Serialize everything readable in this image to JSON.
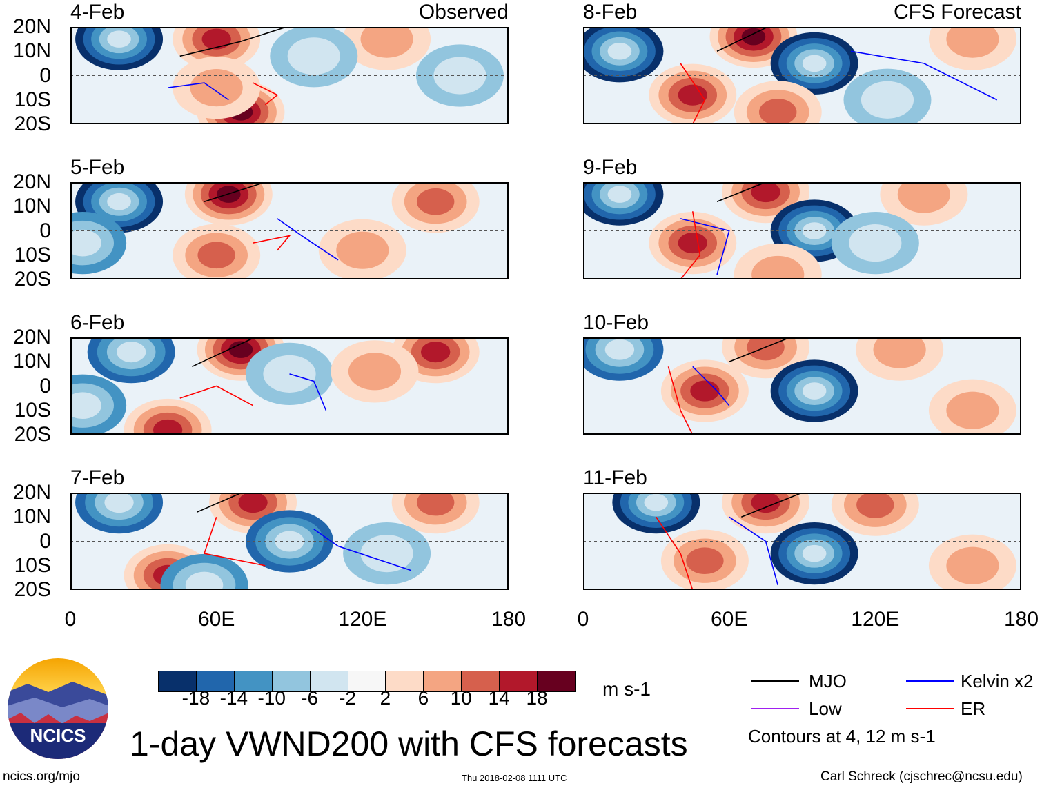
{
  "chart_data": {
    "type": "heatmap",
    "title": "1-day VWND200 with CFS forecasts",
    "units": "m s-1",
    "xlim": [
      0,
      180
    ],
    "ylim": [
      -20,
      20
    ],
    "xticks": [
      "0",
      "60E",
      "120E",
      "180"
    ],
    "yticks": [
      "20N",
      "10N",
      "0",
      "10S",
      "20S"
    ],
    "column_labels": {
      "left": "Observed",
      "right": "CFS Forecast"
    },
    "colorbar": {
      "levels": [
        "-18",
        "-14",
        "-10",
        "-6",
        "-2",
        "2",
        "6",
        "10",
        "14",
        "18"
      ],
      "colors": [
        "#08306b",
        "#2166ac",
        "#4393c3",
        "#92c5de",
        "#d1e5f0",
        "#f7f7f7",
        "#fddbc7",
        "#f4a582",
        "#d6604d",
        "#b2182b",
        "#67001f"
      ]
    },
    "legend": {
      "items": [
        {
          "label": "MJO",
          "color": "#000000"
        },
        {
          "label": "Kelvin x2",
          "color": "#0000ff"
        },
        {
          "label": "Low",
          "color": "#a020f0"
        },
        {
          "label": "ER",
          "color": "#ff0000"
        }
      ],
      "note": "Contours at 4, 12 m s-1"
    },
    "panels": [
      {
        "date": "4-Feb",
        "col": 0,
        "row": 0,
        "label": "Observed",
        "anomalies": [
          [
            20,
            15,
            -18
          ],
          [
            60,
            15,
            14
          ],
          [
            70,
            -15,
            18
          ],
          [
            60,
            -5,
            6
          ],
          [
            160,
            0,
            -6
          ],
          [
            130,
            15,
            6
          ],
          [
            100,
            8,
            -6
          ]
        ],
        "mjo": [
          [
            45,
            8
          ],
          [
            70,
            14
          ],
          [
            95,
            22
          ]
        ],
        "kelvin": [
          [
            40,
            -5
          ],
          [
            55,
            -3
          ],
          [
            65,
            -10
          ]
        ],
        "er": [
          [
            75,
            -3
          ],
          [
            85,
            -8
          ],
          [
            80,
            -12
          ]
        ]
      },
      {
        "date": "5-Feb",
        "col": 0,
        "row": 1,
        "label": "",
        "anomalies": [
          [
            20,
            12,
            -18
          ],
          [
            65,
            15,
            18
          ],
          [
            60,
            -10,
            10
          ],
          [
            150,
            12,
            10
          ],
          [
            5,
            -5,
            -10
          ],
          [
            120,
            -8,
            6
          ]
        ],
        "mjo": [
          [
            55,
            12
          ],
          [
            80,
            20
          ]
        ],
        "kelvin": [
          [
            85,
            5
          ],
          [
            95,
            -2
          ],
          [
            110,
            -12
          ]
        ],
        "er": [
          [
            75,
            -5
          ],
          [
            90,
            -2
          ],
          [
            85,
            -8
          ]
        ]
      },
      {
        "date": "6-Feb",
        "col": 0,
        "row": 2,
        "label": "",
        "anomalies": [
          [
            25,
            14,
            -14
          ],
          [
            70,
            15,
            18
          ],
          [
            150,
            14,
            14
          ],
          [
            40,
            -18,
            14
          ],
          [
            5,
            -8,
            -10
          ],
          [
            90,
            5,
            -6
          ],
          [
            125,
            6,
            6
          ]
        ],
        "mjo": [
          [
            50,
            8
          ],
          [
            80,
            22
          ]
        ],
        "kelvin": [
          [
            90,
            5
          ],
          [
            100,
            2
          ],
          [
            105,
            -10
          ]
        ],
        "er": [
          [
            45,
            -5
          ],
          [
            60,
            0
          ],
          [
            75,
            -8
          ]
        ]
      },
      {
        "date": "7-Feb",
        "col": 0,
        "row": 3,
        "label": "",
        "anomalies": [
          [
            20,
            16,
            -14
          ],
          [
            75,
            16,
            14
          ],
          [
            90,
            0,
            -14
          ],
          [
            150,
            16,
            10
          ],
          [
            40,
            -14,
            14
          ],
          [
            55,
            -18,
            -10
          ],
          [
            130,
            -5,
            -6
          ]
        ],
        "mjo": [
          [
            52,
            12
          ],
          [
            75,
            22
          ]
        ],
        "kelvin": [
          [
            100,
            5
          ],
          [
            110,
            -2
          ],
          [
            140,
            -12
          ]
        ],
        "er": [
          [
            60,
            10
          ],
          [
            55,
            -5
          ],
          [
            80,
            -10
          ]
        ]
      },
      {
        "date": "8-Feb",
        "col": 1,
        "row": 0,
        "label": "CFS Forecast",
        "anomalies": [
          [
            15,
            10,
            -18
          ],
          [
            70,
            16,
            18
          ],
          [
            95,
            5,
            -18
          ],
          [
            45,
            -8,
            14
          ],
          [
            160,
            15,
            6
          ],
          [
            125,
            -10,
            -6
          ],
          [
            80,
            -15,
            10
          ]
        ],
        "mjo": [
          [
            55,
            10
          ],
          [
            80,
            22
          ]
        ],
        "kelvin": [
          [
            110,
            10
          ],
          [
            140,
            5
          ],
          [
            170,
            -10
          ]
        ],
        "er": [
          [
            40,
            5
          ],
          [
            50,
            -10
          ],
          [
            45,
            -20
          ]
        ]
      },
      {
        "date": "9-Feb",
        "col": 1,
        "row": 1,
        "label": "",
        "anomalies": [
          [
            15,
            15,
            -18
          ],
          [
            75,
            16,
            14
          ],
          [
            95,
            0,
            -18
          ],
          [
            45,
            -5,
            14
          ],
          [
            140,
            15,
            6
          ],
          [
            80,
            -18,
            6
          ],
          [
            120,
            -5,
            -6
          ]
        ],
        "mjo": [
          [
            55,
            12
          ],
          [
            80,
            22
          ]
        ],
        "kelvin": [
          [
            40,
            5
          ],
          [
            60,
            0
          ],
          [
            55,
            -18
          ]
        ],
        "er": [
          [
            45,
            8
          ],
          [
            48,
            -10
          ],
          [
            40,
            -20
          ]
        ]
      },
      {
        "date": "10-Feb",
        "col": 1,
        "row": 2,
        "label": "",
        "anomalies": [
          [
            15,
            15,
            -14
          ],
          [
            75,
            16,
            10
          ],
          [
            95,
            -2,
            -18
          ],
          [
            50,
            -2,
            14
          ],
          [
            130,
            15,
            6
          ],
          [
            160,
            -10,
            6
          ]
        ],
        "mjo": [
          [
            60,
            10
          ],
          [
            90,
            22
          ]
        ],
        "kelvin": [
          [
            45,
            8
          ],
          [
            55,
            -2
          ],
          [
            60,
            -8
          ]
        ],
        "er": [
          [
            35,
            8
          ],
          [
            40,
            -10
          ],
          [
            45,
            -20
          ]
        ]
      },
      {
        "date": "11-Feb",
        "col": 1,
        "row": 3,
        "label": "",
        "anomalies": [
          [
            30,
            16,
            -18
          ],
          [
            75,
            16,
            14
          ],
          [
            95,
            -5,
            -18
          ],
          [
            50,
            -8,
            10
          ],
          [
            120,
            15,
            10
          ],
          [
            160,
            -10,
            6
          ]
        ],
        "mjo": [
          [
            65,
            10
          ],
          [
            90,
            20
          ]
        ],
        "kelvin": [
          [
            60,
            10
          ],
          [
            75,
            0
          ],
          [
            80,
            -18
          ]
        ],
        "er": [
          [
            30,
            10
          ],
          [
            40,
            -5
          ],
          [
            45,
            -20
          ]
        ]
      }
    ]
  },
  "logo": {
    "text": "NCICS"
  },
  "footer": {
    "url": "ncics.org/mjo",
    "timestamp": "Thu 2018-02-08 1111 UTC",
    "author": "Carl Schreck (cjschrec@ncsu.edu)"
  }
}
